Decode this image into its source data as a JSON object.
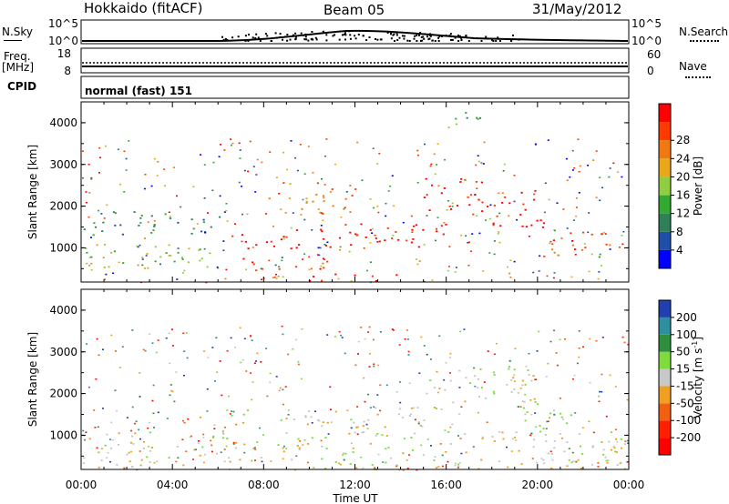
{
  "header": {
    "station": "Hokkaido (fitACF)",
    "beam": "Beam 05",
    "date": "31/May/2012"
  },
  "noise_panel": {
    "left_label": "N.Sky",
    "right_label": "N.Search",
    "tick_top": "10^5",
    "tick_bottom": "10^0",
    "right_tick_top": "10^5",
    "right_tick_bottom": "10^0"
  },
  "freq_panel": {
    "left_label_1": "Freq.",
    "left_label_2": "[MHz]",
    "right_label": "Nave",
    "left_ticks": [
      "18",
      "8"
    ],
    "right_ticks": [
      "60",
      "0"
    ]
  },
  "cpid": {
    "label": "CPID",
    "value": "normal (fast) 151"
  },
  "x_axis": {
    "title": "Time UT",
    "ticks": [
      "00:00",
      "04:00",
      "08:00",
      "12:00",
      "16:00",
      "20:00",
      "00:00"
    ]
  },
  "chart_data": [
    {
      "type": "heatmap",
      "name": "power",
      "ylabel": "Slant Range [km]",
      "yticks": [
        "1000",
        "2000",
        "3000",
        "4000"
      ],
      "ylim": [
        180,
        4500
      ],
      "xlim": [
        0,
        24
      ],
      "colorbar": {
        "label": "Power [dB]",
        "ticks": [
          "4",
          "8",
          "12",
          "16",
          "20",
          "24",
          "28"
        ],
        "colors": [
          "#0000ff",
          "#1f4fa8",
          "#2f7f58",
          "#33a833",
          "#8fcf3f",
          "#e8a81a",
          "#f07a10",
          "#ff3a00",
          "#ff0000"
        ]
      },
      "bands": [
        {
          "x0": 0.0,
          "x1": 6.5,
          "y0": 500,
          "y1": 1100,
          "level": 4
        },
        {
          "x0": 0.0,
          "x1": 6.5,
          "y0": 1300,
          "y1": 1900,
          "level": 2
        },
        {
          "x0": 6.5,
          "x1": 11.5,
          "y0": 1000,
          "y1": 1500,
          "level": 8
        },
        {
          "x0": 7.0,
          "x1": 11.0,
          "y0": 400,
          "y1": 800,
          "level": 7
        },
        {
          "x0": 11.5,
          "x1": 16.0,
          "y0": 900,
          "y1": 1600,
          "level": 8
        },
        {
          "x0": 15.0,
          "x1": 18.0,
          "y0": 1800,
          "y1": 2700,
          "level": 8
        },
        {
          "x0": 18.0,
          "x1": 20.5,
          "y0": 1500,
          "y1": 2500,
          "level": 8
        },
        {
          "x0": 20.0,
          "x1": 23.5,
          "y0": 800,
          "y1": 1400,
          "level": 7
        },
        {
          "x0": 9.0,
          "x1": 14.0,
          "y0": 200,
          "y1": 400,
          "level": 8
        },
        {
          "x0": 8.0,
          "x1": 12.0,
          "y0": 1800,
          "y1": 2600,
          "level": 6
        },
        {
          "x0": 16.0,
          "x1": 18.0,
          "y0": 3800,
          "y1": 4300,
          "level": 3
        }
      ]
    },
    {
      "type": "heatmap",
      "name": "velocity",
      "ylabel": "Slant Range [km]",
      "yticks": [
        "1000",
        "2000",
        "3000",
        "4000"
      ],
      "ylim": [
        180,
        4500
      ],
      "xlim": [
        0,
        24
      ],
      "colorbar": {
        "label": "Velocity [m s^-1]",
        "ticks": [
          "200",
          "100",
          "50",
          "15",
          "-15",
          "-50",
          "-100",
          "-200"
        ],
        "colors": [
          "#2040b0",
          "#2f8f9f",
          "#2f8f3f",
          "#7fdc3f",
          "#c8c8c8",
          "#f0a020",
          "#f06010",
          "#ff2000",
          "#ff0000"
        ]
      },
      "bands": [
        {
          "x0": 0.0,
          "x1": 24.0,
          "y0": 300,
          "y1": 1100,
          "level": 4
        },
        {
          "x0": 5.0,
          "x1": 16.0,
          "y0": 1200,
          "y1": 1700,
          "level": 4
        },
        {
          "x0": 15.0,
          "x1": 20.0,
          "y0": 1800,
          "y1": 2600,
          "level": 4
        },
        {
          "x0": 17.0,
          "x1": 19.0,
          "y0": 2000,
          "y1": 2800,
          "level": 3
        },
        {
          "x0": 19.0,
          "x1": 21.5,
          "y0": 1000,
          "y1": 1900,
          "level": 3
        },
        {
          "x0": 10.5,
          "x1": 13.0,
          "y0": 200,
          "y1": 600,
          "level": 3
        },
        {
          "x0": 0.0,
          "x1": 24.0,
          "y0": 180,
          "y1": 300,
          "level": 5
        }
      ]
    }
  ]
}
